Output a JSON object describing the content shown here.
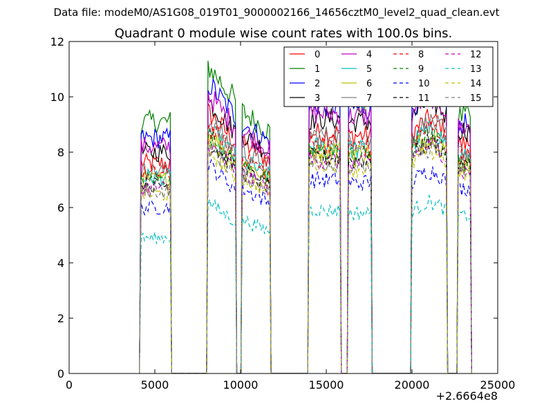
{
  "suptitle": "Data file: modeM0/AS1G08_019T01_9000002166_14656cztM0_level2_quad_clean.evt",
  "chart_data": {
    "type": "line",
    "title": "Quadrant 0 module wise count rates with 100.0s bins.",
    "xlabel": "",
    "ylabel": "",
    "x_offset_label": "+2.6664e8",
    "xlim": [
      0,
      25000
    ],
    "ylim": [
      0,
      12
    ],
    "xticks": [
      0,
      5000,
      10000,
      15000,
      20000,
      25000
    ],
    "yticks": [
      0,
      2,
      4,
      6,
      8,
      10,
      12
    ],
    "grid": false,
    "legend_position": "top-right",
    "legend_columns": 4,
    "segments": [
      [
        4200,
        5900
      ],
      [
        8100,
        9700
      ],
      [
        10100,
        11700
      ],
      [
        14000,
        15800
      ],
      [
        16300,
        17600
      ],
      [
        20000,
        22000
      ],
      [
        22700,
        23400
      ]
    ],
    "series": [
      {
        "name": "0",
        "color": "#ff0000",
        "dash": "solid",
        "levels": [
          7.6,
          9.0,
          8.1,
          8.7,
          8.6,
          8.9,
          8.3
        ]
      },
      {
        "name": "1",
        "color": "#008000",
        "dash": "solid",
        "levels": [
          9.1,
          10.6,
          9.2,
          10.0,
          9.8,
          10.2,
          9.3
        ]
      },
      {
        "name": "2",
        "color": "#0000ff",
        "dash": "solid",
        "levels": [
          8.5,
          10.0,
          8.8,
          9.7,
          9.6,
          9.9,
          9.0
        ]
      },
      {
        "name": "3",
        "color": "#000000",
        "dash": "solid",
        "levels": [
          8.0,
          9.4,
          8.4,
          9.2,
          9.1,
          9.5,
          8.8
        ]
      },
      {
        "name": "4",
        "color": "#bf00bf",
        "dash": "solid",
        "levels": [
          8.2,
          9.6,
          8.5,
          9.4,
          9.3,
          9.7,
          8.9
        ]
      },
      {
        "name": "5",
        "color": "#00bfbf",
        "dash": "solid",
        "levels": [
          7.1,
          8.4,
          7.5,
          8.2,
          8.1,
          8.5,
          7.8
        ]
      },
      {
        "name": "6",
        "color": "#bfbf00",
        "dash": "solid",
        "levels": [
          7.0,
          8.3,
          7.4,
          8.1,
          8.0,
          8.3,
          7.6
        ]
      },
      {
        "name": "7",
        "color": "#808080",
        "dash": "solid",
        "levels": [
          7.3,
          8.7,
          7.8,
          8.6,
          8.4,
          8.8,
          8.0
        ]
      },
      {
        "name": "8",
        "color": "#ff0000",
        "dash": "dashed",
        "levels": [
          7.2,
          8.5,
          7.6,
          8.3,
          8.2,
          8.6,
          7.9
        ]
      },
      {
        "name": "9",
        "color": "#008000",
        "dash": "dashed",
        "levels": [
          7.0,
          8.2,
          7.3,
          8.0,
          7.9,
          8.3,
          7.6
        ]
      },
      {
        "name": "10",
        "color": "#0000ff",
        "dash": "dashed",
        "levels": [
          6.0,
          7.2,
          6.5,
          7.0,
          6.9,
          7.1,
          6.7
        ]
      },
      {
        "name": "11",
        "color": "#000000",
        "dash": "dashed",
        "levels": [
          6.8,
          8.0,
          7.1,
          7.8,
          7.7,
          8.1,
          7.5
        ]
      },
      {
        "name": "12",
        "color": "#bf00bf",
        "dash": "dashed",
        "levels": [
          6.7,
          7.9,
          7.0,
          7.7,
          7.6,
          8.0,
          7.3
        ]
      },
      {
        "name": "13",
        "color": "#00bfbf",
        "dash": "dashed",
        "levels": [
          4.9,
          5.9,
          5.4,
          5.9,
          5.8,
          6.0,
          5.7
        ]
      },
      {
        "name": "14",
        "color": "#bfbf00",
        "dash": "dashed",
        "levels": [
          6.5,
          7.7,
          6.9,
          7.6,
          7.4,
          7.8,
          7.2
        ]
      },
      {
        "name": "15",
        "color": "#808080",
        "dash": "dashed",
        "levels": [
          6.6,
          7.8,
          7.0,
          7.6,
          7.5,
          7.9,
          7.3
        ]
      }
    ]
  }
}
